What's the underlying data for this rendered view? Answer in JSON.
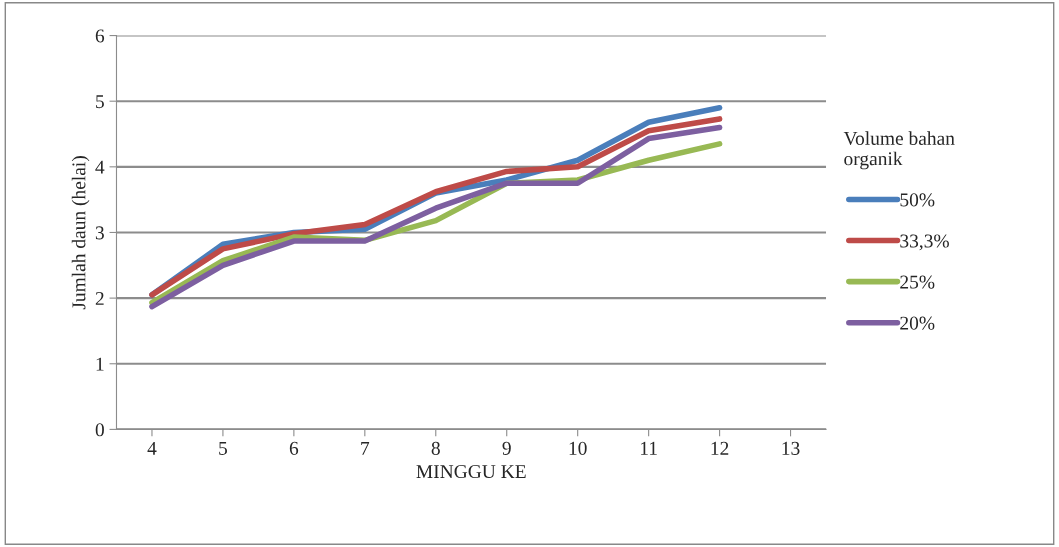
{
  "chart_data": {
    "type": "line",
    "xlabel": "MINGGU KE",
    "ylabel": "Jumlah daun (helai)",
    "legend_title": "Volume bahan\norganik",
    "categories": [
      "4",
      "5",
      "6",
      "7",
      "8",
      "9",
      "10",
      "11",
      "12",
      "13"
    ],
    "series": [
      {
        "name": "50%",
        "color": "#4a7ebb",
        "values": [
          2.05,
          2.82,
          3.0,
          3.05,
          3.6,
          3.8,
          4.1,
          4.68,
          4.9,
          null
        ]
      },
      {
        "name": "33,3%",
        "color": "#be4b48",
        "values": [
          2.05,
          2.75,
          2.98,
          3.12,
          3.62,
          3.93,
          4.0,
          4.55,
          4.73,
          null
        ]
      },
      {
        "name": "25%",
        "color": "#98b954",
        "values": [
          1.93,
          2.57,
          2.93,
          2.88,
          3.18,
          3.75,
          3.8,
          4.1,
          4.35,
          null
        ]
      },
      {
        "name": "20%",
        "color": "#7d5fa0",
        "values": [
          1.87,
          2.5,
          2.87,
          2.87,
          3.37,
          3.75,
          3.75,
          4.43,
          4.6,
          null
        ]
      }
    ],
    "ylim": [
      0,
      6
    ],
    "yticks": [
      0,
      1,
      2,
      3,
      4,
      5,
      6
    ],
    "grid": "y",
    "legend": "right",
    "marker": "none",
    "line_style": "solid"
  }
}
